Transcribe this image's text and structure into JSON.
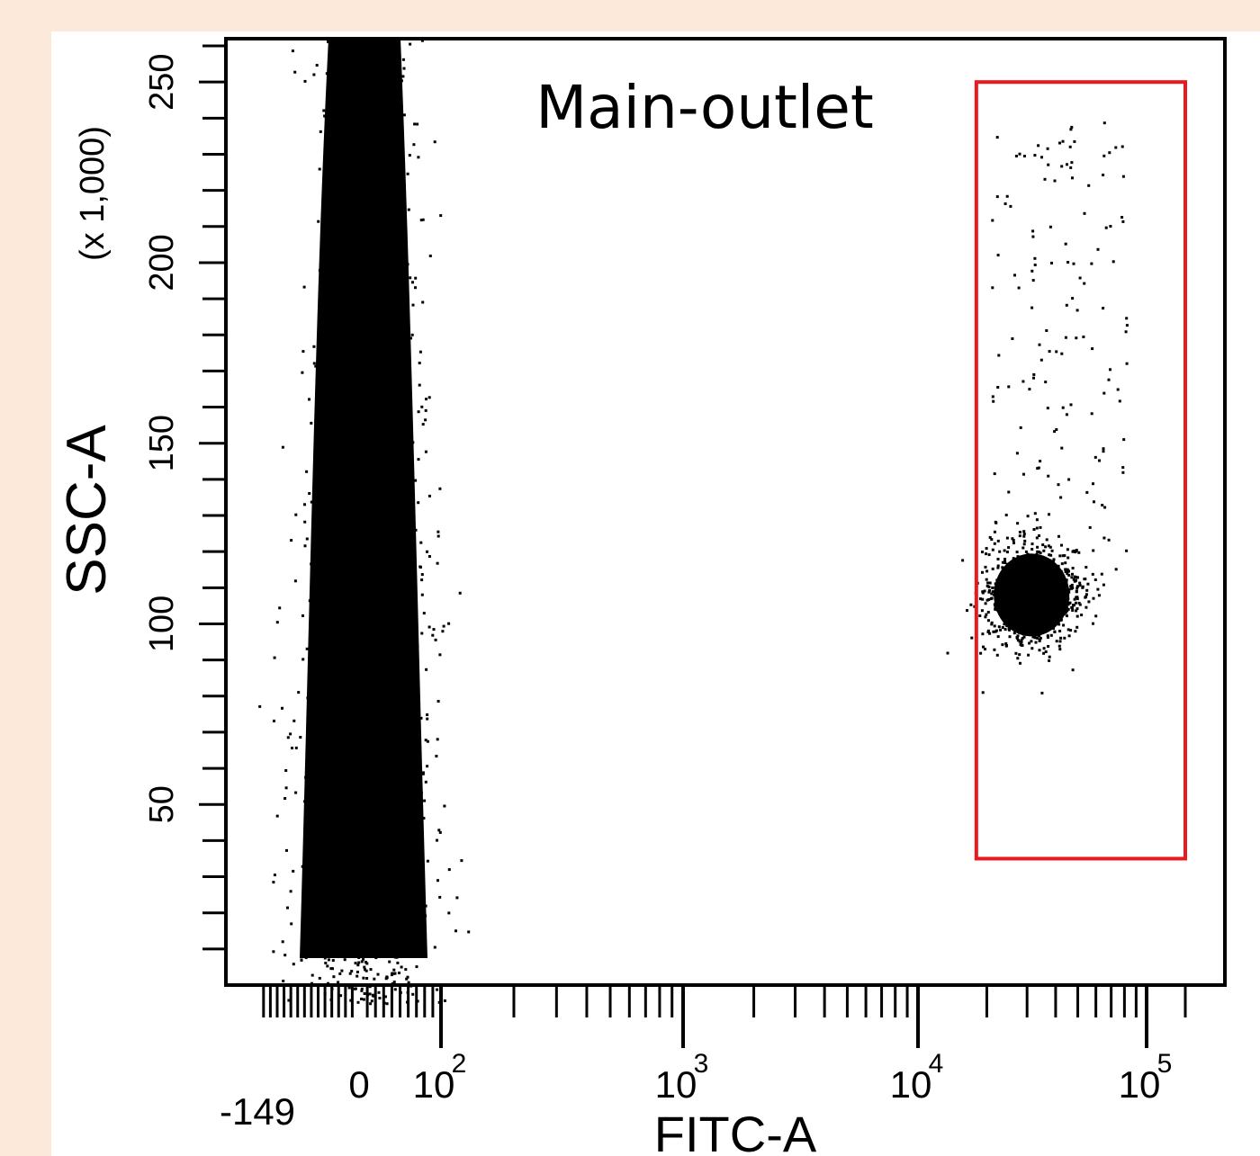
{
  "chart_data": {
    "type": "scatter",
    "title": "Main-outlet",
    "xlabel": "FITC-A",
    "ylabel": "SSC-A",
    "y_unit": "(x 1,000)",
    "x_scale": "biexponential",
    "x_tick_labels": [
      {
        "value": -149,
        "label": "-149"
      },
      {
        "value": 0,
        "label": "0"
      },
      {
        "value": 100,
        "label": "10",
        "sup": "2"
      },
      {
        "value": 1000,
        "label": "10",
        "sup": "3"
      },
      {
        "value": 10000,
        "label": "10",
        "sup": "4"
      },
      {
        "value": 100000,
        "label": "10",
        "sup": "5"
      }
    ],
    "y_tick_labels": [
      {
        "value": 50,
        "label": "50"
      },
      {
        "value": 100,
        "label": "100"
      },
      {
        "value": 150,
        "label": "150"
      },
      {
        "value": 200,
        "label": "200"
      },
      {
        "value": 250,
        "label": "250"
      }
    ],
    "ylim": [
      0,
      262
    ],
    "grid": false,
    "gate": {
      "x_range": [
        18000,
        140000
      ],
      "y_range": [
        35,
        250
      ],
      "color": "#e8191f"
    },
    "populations": [
      {
        "name": "negative",
        "x_center": 0,
        "x_spread": 60,
        "y_range": [
          0,
          262
        ]
      },
      {
        "name": "positive",
        "x_center": 35000,
        "y_center": 108,
        "y_spread": 12
      }
    ],
    "colors": {
      "dots": "#000000",
      "gate": "#e8191f",
      "background": "#fde9d9"
    }
  }
}
